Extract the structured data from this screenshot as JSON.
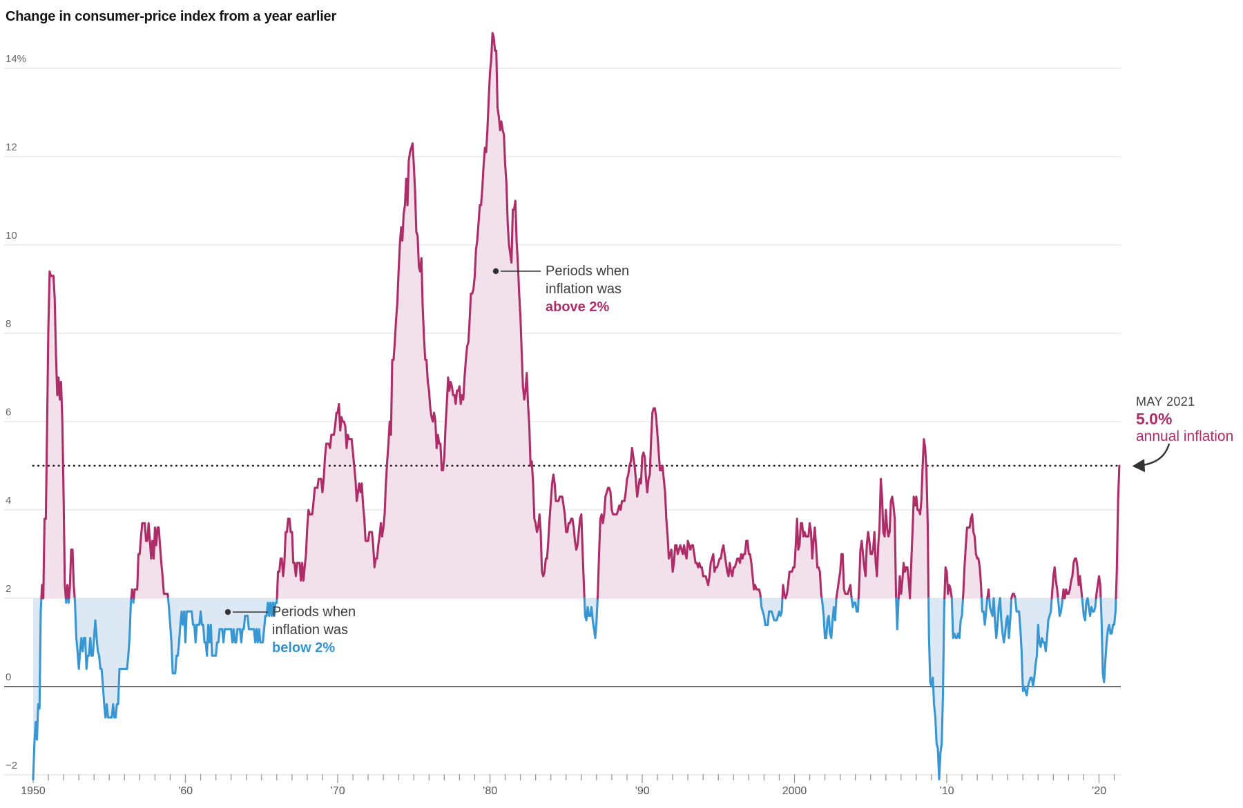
{
  "title": "Change in consumer-price index from a year earlier",
  "annotations": {
    "above": {
      "line1": "Periods when",
      "line2": "inflation was",
      "line3": "above 2%"
    },
    "below": {
      "line1": "Periods when",
      "line2": "inflation was",
      "line3": "below 2%"
    },
    "latest": {
      "label": "MAY 2021",
      "value": "5.0%",
      "caption": "annual inflation"
    }
  },
  "y_axis": {
    "ticks": [
      {
        "value": 14,
        "label": "14%"
      },
      {
        "value": 12,
        "label": "12"
      },
      {
        "value": 10,
        "label": "10"
      },
      {
        "value": 8,
        "label": "8"
      },
      {
        "value": 6,
        "label": "6"
      },
      {
        "value": 4,
        "label": "4"
      },
      {
        "value": 2,
        "label": "2"
      },
      {
        "value": 0,
        "label": "0"
      },
      {
        "value": -2,
        "label": "−2"
      }
    ]
  },
  "x_axis": {
    "decade_labels": [
      {
        "year": 1950,
        "label": "1950"
      },
      {
        "year": 1960,
        "label": "’60"
      },
      {
        "year": 1970,
        "label": "’70"
      },
      {
        "year": 1980,
        "label": "’80"
      },
      {
        "year": 1990,
        "label": "’90"
      },
      {
        "year": 2000,
        "label": "2000"
      },
      {
        "year": 2010,
        "label": "’10"
      },
      {
        "year": 2020,
        "label": "’20"
      }
    ],
    "minor_tick_every_years": 1
  },
  "colors": {
    "line_above": "#ae2d68",
    "fill_above": "#f2e0ea",
    "line_below": "#3897d3",
    "fill_below": "#dce9f5",
    "gridline": "#e4e4e4",
    "zero_line": "#57575b",
    "dotted_line": "#222222",
    "tick": "#97979b",
    "callout": "#333333"
  },
  "chart_data": {
    "type": "area",
    "unit": "percent change from a year earlier",
    "frequency": "monthly",
    "start": "1950-01",
    "end": "2021-05",
    "threshold_pct": 2.0,
    "reference_dotted_line_pct": 5.0,
    "ylim": [
      -2.5,
      15
    ],
    "xlim": [
      1950,
      2021.5
    ],
    "grid": "horizontal",
    "legend_position": "inline-callouts",
    "values": {
      "1950": [
        -2.1,
        -1.3,
        -0.8,
        -1.2,
        -0.4,
        -0.5,
        1.7,
        2.3,
        2.0,
        3.8,
        3.8,
        5.9
      ],
      "1951": [
        8.1,
        9.4,
        9.3,
        9.3,
        9.3,
        8.8,
        7.5,
        6.6,
        7.0,
        6.5,
        6.9,
        6.0
      ],
      "1952": [
        4.3,
        2.3,
        1.9,
        2.3,
        1.9,
        2.3,
        3.1,
        3.1,
        2.3,
        1.9,
        1.1,
        0.8
      ],
      "1953": [
        0.4,
        0.8,
        1.1,
        0.8,
        1.1,
        1.1,
        0.4,
        0.7,
        0.7,
        1.1,
        0.7,
        0.7
      ],
      "1954": [
        1.1,
        1.5,
        1.1,
        0.8,
        0.7,
        0.4,
        0.4,
        0.0,
        -0.4,
        -0.7,
        -0.4,
        -0.7
      ],
      "1955": [
        -0.7,
        -0.7,
        -0.7,
        -0.4,
        -0.7,
        -0.7,
        -0.4,
        -0.4,
        0.4,
        0.4,
        0.4,
        0.4
      ],
      "1956": [
        0.4,
        0.4,
        0.4,
        0.7,
        1.1,
        1.9,
        2.2,
        1.9,
        2.2,
        2.2,
        2.2,
        3.0
      ],
      "1957": [
        3.0,
        3.4,
        3.7,
        3.7,
        3.7,
        3.3,
        3.3,
        3.7,
        3.3,
        2.9,
        3.3,
        2.9
      ],
      "1958": [
        3.6,
        3.2,
        3.6,
        3.6,
        3.2,
        2.8,
        2.5,
        2.1,
        2.1,
        2.1,
        2.1,
        1.8
      ],
      "1959": [
        1.4,
        1.0,
        0.3,
        0.3,
        0.3,
        0.7,
        0.7,
        1.0,
        1.4,
        1.7,
        1.4,
        1.7
      ],
      "1960": [
        1.0,
        1.7,
        1.7,
        1.7,
        1.7,
        1.7,
        1.4,
        1.4,
        1.0,
        1.4,
        1.4,
        1.4
      ],
      "1961": [
        1.7,
        1.4,
        1.4,
        1.0,
        1.0,
        0.7,
        1.4,
        1.0,
        1.4,
        0.7,
        0.7,
        0.7
      ],
      "1962": [
        0.7,
        1.0,
        1.0,
        1.3,
        1.3,
        1.3,
        1.0,
        1.3,
        1.3,
        1.3,
        1.3,
        1.3
      ],
      "1963": [
        1.3,
        1.0,
        1.3,
        1.0,
        1.0,
        1.3,
        1.3,
        1.3,
        1.0,
        1.3,
        1.3,
        1.6
      ],
      "1964": [
        1.6,
        1.6,
        1.3,
        1.3,
        1.3,
        1.3,
        1.3,
        1.0,
        1.3,
        1.0,
        1.3,
        1.0
      ],
      "1965": [
        1.0,
        1.0,
        1.3,
        1.6,
        1.6,
        1.9,
        1.6,
        1.9,
        1.6,
        1.9,
        1.6,
        1.9
      ],
      "1966": [
        1.9,
        2.6,
        2.6,
        2.9,
        2.9,
        2.5,
        2.8,
        3.5,
        3.5,
        3.8,
        3.8,
        3.5
      ],
      "1967": [
        3.5,
        2.8,
        2.8,
        2.5,
        2.8,
        2.8,
        2.8,
        2.4,
        2.8,
        2.4,
        2.7,
        3.0
      ],
      "1968": [
        3.6,
        4.0,
        3.9,
        3.9,
        3.9,
        4.2,
        4.5,
        4.5,
        4.5,
        4.7,
        4.7,
        4.7
      ],
      "1969": [
        4.4,
        4.7,
        5.2,
        5.5,
        5.5,
        5.5,
        5.4,
        5.7,
        5.7,
        5.7,
        5.9,
        6.2
      ],
      "1970": [
        6.2,
        6.4,
        5.8,
        6.1,
        6.0,
        6.0,
        5.9,
        5.4,
        5.7,
        5.6,
        5.6,
        5.6
      ],
      "1971": [
        5.3,
        5.0,
        4.7,
        4.2,
        4.4,
        4.6,
        4.4,
        4.6,
        4.1,
        3.8,
        3.3,
        3.3
      ],
      "1972": [
        3.3,
        3.5,
        3.5,
        3.5,
        3.2,
        2.7,
        2.9,
        2.9,
        3.2,
        3.4,
        3.7,
        3.4
      ],
      "1973": [
        3.6,
        3.9,
        4.6,
        5.1,
        5.5,
        6.0,
        5.7,
        7.4,
        7.4,
        7.8,
        8.3,
        8.7
      ],
      "1974": [
        9.4,
        10.0,
        10.4,
        10.1,
        10.7,
        10.9,
        11.5,
        10.9,
        11.9,
        12.1,
        12.2,
        12.3
      ],
      "1975": [
        11.8,
        11.2,
        10.3,
        10.2,
        9.5,
        9.4,
        9.7,
        8.6,
        7.9,
        7.4,
        7.4,
        6.9
      ],
      "1976": [
        6.7,
        6.3,
        6.1,
        6.0,
        6.2,
        6.0,
        5.4,
        5.7,
        5.5,
        5.5,
        4.9,
        4.9
      ],
      "1977": [
        5.2,
        5.9,
        6.4,
        7.0,
        6.7,
        6.9,
        6.8,
        6.6,
        6.6,
        6.4,
        6.7,
        6.7
      ],
      "1978": [
        6.8,
        6.4,
        6.6,
        6.5,
        7.0,
        7.4,
        7.7,
        7.8,
        8.3,
        8.9,
        8.9,
        9.0
      ],
      "1979": [
        9.3,
        9.9,
        10.1,
        10.5,
        10.9,
        10.9,
        11.3,
        11.8,
        12.2,
        12.1,
        12.6,
        13.3
      ],
      "1980": [
        13.9,
        14.2,
        14.8,
        14.7,
        14.4,
        14.4,
        13.1,
        12.9,
        12.6,
        12.8,
        12.6,
        12.5
      ],
      "1981": [
        11.8,
        11.4,
        10.5,
        10.0,
        9.8,
        9.6,
        10.8,
        10.8,
        11.0,
        10.1,
        9.6,
        8.9
      ],
      "1982": [
        8.4,
        7.6,
        6.8,
        6.5,
        6.7,
        7.1,
        6.4,
        5.9,
        5.0,
        5.1,
        4.6,
        3.8
      ],
      "1983": [
        3.7,
        3.5,
        3.6,
        3.9,
        3.5,
        2.6,
        2.5,
        2.6,
        2.9,
        2.9,
        3.3,
        3.8
      ],
      "1984": [
        4.2,
        4.6,
        4.8,
        4.6,
        4.2,
        4.2,
        4.2,
        4.3,
        4.3,
        4.3,
        4.1,
        3.9
      ],
      "1985": [
        3.5,
        3.5,
        3.7,
        3.7,
        3.8,
        3.8,
        3.6,
        3.3,
        3.1,
        3.2,
        3.5,
        3.8
      ],
      "1986": [
        3.9,
        3.1,
        2.3,
        1.6,
        1.5,
        1.8,
        1.6,
        1.6,
        1.8,
        1.5,
        1.3,
        1.1
      ],
      "1987": [
        1.5,
        2.1,
        3.0,
        3.8,
        3.9,
        3.7,
        3.9,
        4.3,
        4.4,
        4.5,
        4.5,
        4.4
      ],
      "1988": [
        4.0,
        3.9,
        3.9,
        3.9,
        3.9,
        4.0,
        4.1,
        4.0,
        4.2,
        4.2,
        4.2,
        4.4
      ],
      "1989": [
        4.7,
        4.8,
        5.0,
        5.1,
        5.4,
        5.2,
        5.0,
        4.7,
        4.3,
        4.5,
        4.7,
        4.6
      ],
      "1990": [
        5.2,
        5.3,
        5.2,
        4.7,
        4.4,
        4.7,
        4.8,
        5.6,
        6.2,
        6.3,
        6.3,
        6.1
      ],
      "1991": [
        5.7,
        5.3,
        4.9,
        4.9,
        5.0,
        4.7,
        4.4,
        3.8,
        3.4,
        2.9,
        3.0,
        3.1
      ],
      "1992": [
        2.6,
        2.8,
        3.2,
        3.2,
        3.0,
        3.1,
        3.2,
        3.1,
        3.0,
        3.2,
        3.0,
        2.9
      ],
      "1993": [
        3.3,
        3.2,
        3.1,
        3.2,
        3.2,
        3.0,
        2.8,
        2.8,
        2.7,
        2.8,
        2.7,
        2.7
      ],
      "1994": [
        2.5,
        2.5,
        2.5,
        2.4,
        2.3,
        2.5,
        2.8,
        2.9,
        3.0,
        2.6,
        2.7,
        2.7
      ],
      "1995": [
        2.8,
        2.9,
        2.9,
        3.1,
        3.2,
        3.0,
        2.8,
        2.6,
        2.5,
        2.8,
        2.6,
        2.5
      ],
      "1996": [
        2.7,
        2.7,
        2.8,
        2.9,
        2.9,
        2.8,
        3.0,
        2.9,
        3.0,
        3.0,
        3.3,
        3.3
      ],
      "1997": [
        3.0,
        3.0,
        2.8,
        2.5,
        2.2,
        2.3,
        2.2,
        2.2,
        2.2,
        2.1,
        1.8,
        1.7
      ],
      "1998": [
        1.6,
        1.4,
        1.4,
        1.4,
        1.7,
        1.7,
        1.7,
        1.6,
        1.5,
        1.5,
        1.5,
        1.6
      ],
      "1999": [
        1.7,
        1.6,
        1.7,
        2.3,
        2.1,
        2.0,
        2.1,
        2.3,
        2.6,
        2.6,
        2.6,
        2.7
      ],
      "2000": [
        2.7,
        3.2,
        3.8,
        3.1,
        3.2,
        3.7,
        3.7,
        3.4,
        3.5,
        3.4,
        3.4,
        3.4
      ],
      "2001": [
        3.7,
        3.5,
        2.9,
        3.3,
        3.6,
        3.2,
        2.7,
        2.7,
        2.6,
        2.1,
        1.9,
        1.6
      ],
      "2002": [
        1.1,
        1.1,
        1.5,
        1.6,
        1.2,
        1.1,
        1.5,
        1.8,
        1.5,
        2.0,
        2.2,
        2.4
      ],
      "2003": [
        2.6,
        3.0,
        3.0,
        2.2,
        2.1,
        2.1,
        2.1,
        2.2,
        2.3,
        2.0,
        1.8,
        1.9
      ],
      "2004": [
        1.9,
        1.7,
        1.7,
        2.3,
        3.1,
        3.3,
        3.0,
        2.7,
        2.5,
        3.2,
        3.5,
        3.3
      ],
      "2005": [
        3.0,
        3.0,
        3.1,
        3.5,
        2.8,
        2.5,
        3.2,
        3.6,
        4.7,
        4.3,
        3.5,
        3.4
      ],
      "2006": [
        4.0,
        3.6,
        3.4,
        3.5,
        4.2,
        4.3,
        4.1,
        3.8,
        2.1,
        1.3,
        2.0,
        2.5
      ],
      "2007": [
        2.1,
        2.4,
        2.8,
        2.6,
        2.7,
        2.7,
        2.4,
        2.0,
        2.8,
        3.5,
        4.3,
        4.1
      ],
      "2008": [
        4.3,
        4.0,
        4.0,
        3.9,
        4.2,
        5.0,
        5.6,
        5.4,
        4.9,
        3.7,
        1.1,
        0.1
      ],
      "2009": [
        0.0,
        0.2,
        -0.4,
        -0.7,
        -1.3,
        -1.4,
        -2.1,
        -1.5,
        -1.3,
        -0.2,
        1.8,
        2.7
      ],
      "2010": [
        2.6,
        2.1,
        2.3,
        2.2,
        2.0,
        1.1,
        1.2,
        1.1,
        1.1,
        1.2,
        1.1,
        1.5
      ],
      "2011": [
        1.6,
        2.1,
        2.7,
        3.2,
        3.6,
        3.6,
        3.6,
        3.8,
        3.9,
        3.5,
        3.4,
        3.0
      ],
      "2012": [
        2.9,
        2.9,
        2.7,
        2.3,
        1.7,
        1.7,
        1.4,
        1.7,
        2.0,
        2.2,
        1.8,
        1.7
      ],
      "2013": [
        1.6,
        2.0,
        1.5,
        1.1,
        1.4,
        1.8,
        2.0,
        1.5,
        1.2,
        1.0,
        1.2,
        1.5
      ],
      "2014": [
        1.6,
        1.1,
        1.5,
        2.0,
        2.1,
        2.1,
        2.0,
        1.7,
        1.7,
        1.7,
        1.3,
        0.8
      ],
      "2015": [
        -0.1,
        0.0,
        -0.1,
        -0.2,
        0.0,
        0.1,
        0.2,
        0.2,
        0.0,
        0.2,
        0.5,
        0.7
      ],
      "2016": [
        1.4,
        1.0,
        0.9,
        1.1,
        1.0,
        1.0,
        0.8,
        1.1,
        1.5,
        1.6,
        1.7,
        2.1
      ],
      "2017": [
        2.5,
        2.7,
        2.4,
        2.2,
        1.9,
        1.6,
        1.7,
        1.9,
        2.2,
        2.0,
        2.2,
        2.1
      ],
      "2018": [
        2.1,
        2.2,
        2.4,
        2.5,
        2.8,
        2.9,
        2.9,
        2.7,
        2.3,
        2.5,
        2.2,
        1.9
      ],
      "2019": [
        1.6,
        1.5,
        1.9,
        2.0,
        1.8,
        1.6,
        1.8,
        1.7,
        1.7,
        1.8,
        2.1,
        2.3
      ],
      "2020": [
        2.5,
        2.3,
        1.5,
        0.3,
        0.1,
        0.6,
        1.0,
        1.3,
        1.4,
        1.2,
        1.2,
        1.4
      ],
      "2021": [
        1.4,
        1.7,
        2.6,
        4.2,
        5.0
      ]
    }
  }
}
